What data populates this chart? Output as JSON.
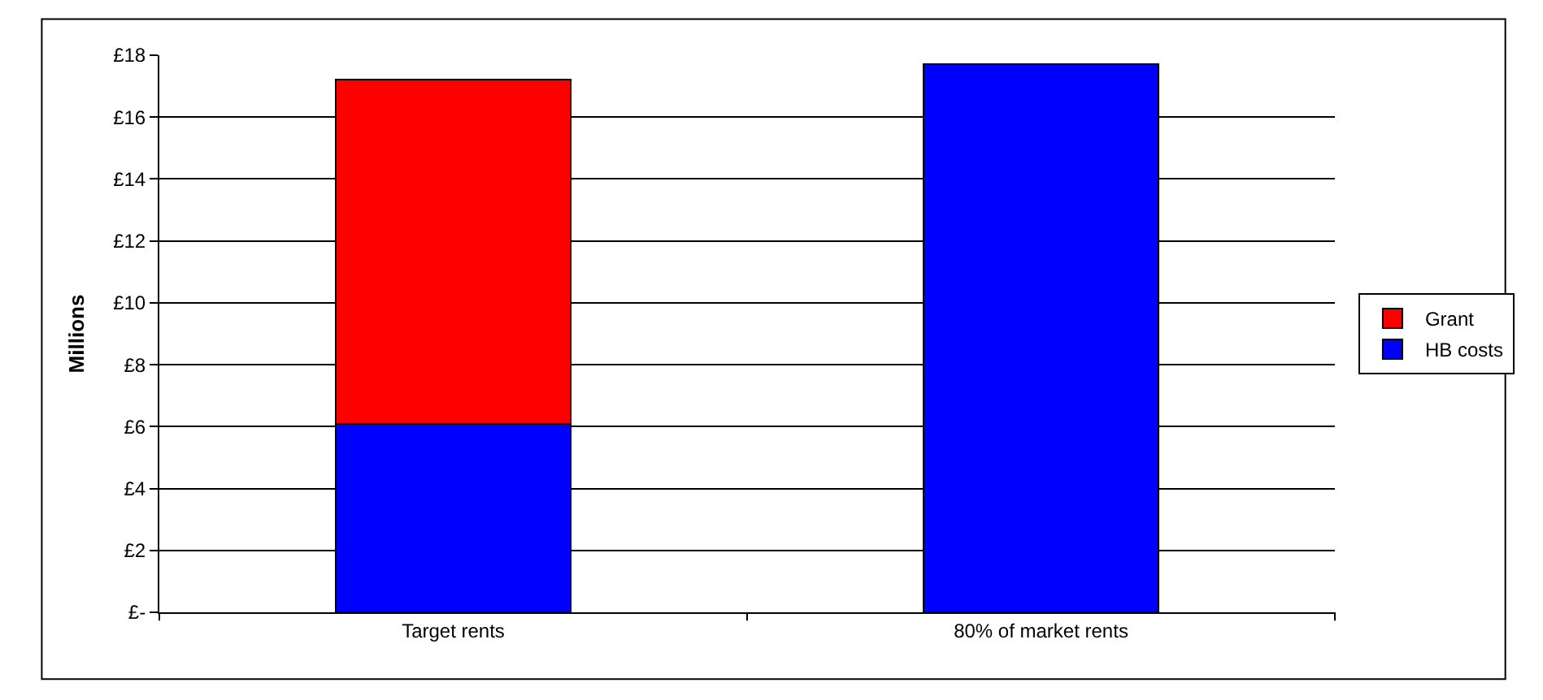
{
  "chart_data": {
    "type": "bar",
    "ylabel": "Millions",
    "categories": [
      "Target rents",
      "80% of market rents"
    ],
    "series": [
      {
        "name": "HB costs",
        "color": "#0000ff",
        "values": [
          6.1,
          17.7
        ]
      },
      {
        "name": "Grant",
        "color": "#ff0000",
        "values": [
          11.1,
          null
        ]
      }
    ],
    "stacked": true,
    "ylim": [
      0,
      18
    ],
    "yticks": [
      {
        "value": 0,
        "label": "£-"
      },
      {
        "value": 2,
        "label": "£2"
      },
      {
        "value": 4,
        "label": "£4"
      },
      {
        "value": 6,
        "label": "£6"
      },
      {
        "value": 8,
        "label": "£8"
      },
      {
        "value": 10,
        "label": "£10"
      },
      {
        "value": 12,
        "label": "£12"
      },
      {
        "value": 14,
        "label": "£14"
      },
      {
        "value": 16,
        "label": "£16"
      },
      {
        "value": 18,
        "label": "£18"
      }
    ],
    "grid": "y",
    "legend": "right"
  }
}
